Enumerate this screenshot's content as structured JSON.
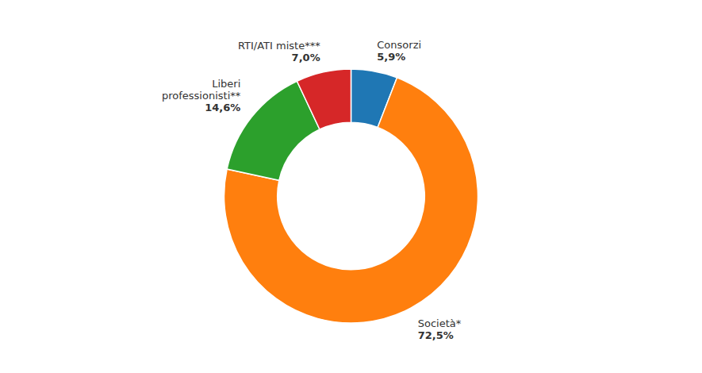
{
  "chart_data": {
    "type": "pie",
    "categories": [
      "Consorzi",
      "Società*",
      "Liberi\nprofessionisti**",
      "RTI/ATI miste***"
    ],
    "values": [
      5.9,
      72.5,
      14.6,
      7.0
    ],
    "value_labels": [
      "5,9%",
      "72,5%",
      "14,6%",
      "7,0%"
    ]
  }
}
